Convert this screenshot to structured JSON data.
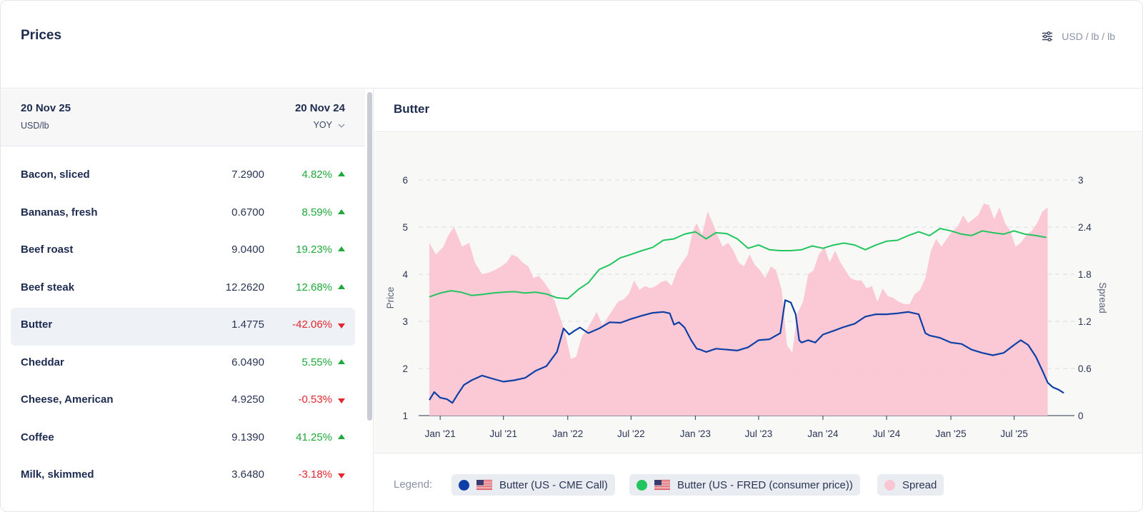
{
  "header": {
    "title": "Prices",
    "units": "USD / lb / lb",
    "units_icon": "sliders-icon"
  },
  "left_panel": {
    "date_current": "20 Nov 25",
    "unit": "USD/lb",
    "date_compare": "20 Nov 24",
    "compare_mode": "YOY",
    "rows": [
      {
        "name": "Bacon, sliced",
        "value": "7.2900",
        "change": "4.82%",
        "dir": "up"
      },
      {
        "name": "Bananas, fresh",
        "value": "0.6700",
        "change": "8.59%",
        "dir": "up"
      },
      {
        "name": "Beef roast",
        "value": "9.0400",
        "change": "19.23%",
        "dir": "up"
      },
      {
        "name": "Beef steak",
        "value": "12.2620",
        "change": "12.68%",
        "dir": "up"
      },
      {
        "name": "Butter",
        "value": "1.4775",
        "change": "-42.06%",
        "dir": "down",
        "selected": true
      },
      {
        "name": "Cheddar",
        "value": "6.0490",
        "change": "5.55%",
        "dir": "up"
      },
      {
        "name": "Cheese, American",
        "value": "4.9250",
        "change": "-0.53%",
        "dir": "down"
      },
      {
        "name": "Coffee",
        "value": "9.1390",
        "change": "41.25%",
        "dir": "up"
      },
      {
        "name": "Milk, skimmed",
        "value": "3.6480",
        "change": "-3.18%",
        "dir": "down"
      }
    ]
  },
  "chart_panel": {
    "title": "Butter"
  },
  "legend": {
    "label": "Legend:",
    "items": [
      {
        "name": "Butter (US - CME Call)",
        "color": "#0d3fa6",
        "flag": "us-flag-icon"
      },
      {
        "name": "Butter (US - FRED (consumer price))",
        "color": "#22c55e",
        "flag": "us-flag-icon"
      },
      {
        "name": "Spread",
        "color": "#fbc6d3"
      }
    ]
  },
  "chart_data": {
    "type": "line",
    "ylabel": "Price",
    "y2label": "Spread",
    "ylim": [
      1,
      6
    ],
    "y2lim": [
      0,
      3
    ],
    "yticks": [
      "1",
      "2",
      "3",
      "4",
      "5",
      "6"
    ],
    "y2ticks": [
      "0",
      "0.6",
      "1.2",
      "1.8",
      "2.4",
      "3"
    ],
    "xticks": [
      "Jan '21",
      "Jul '21",
      "Jan '22",
      "Jul '22",
      "Jan '23",
      "Jul '23",
      "Jan '24",
      "Jul '24",
      "Jan '25",
      "Jul '25"
    ],
    "xlim": [
      "2020-12-01",
      "2025-11-30"
    ],
    "grid": "horizontal dashed",
    "series": [
      {
        "name": "Butter (US - CME Call)",
        "axis": "left",
        "color": "#0d3fa6",
        "x": [
          "2020-12-01",
          "2020-12-15",
          "2021-01-01",
          "2021-01-20",
          "2021-02-05",
          "2021-02-20",
          "2021-03-10",
          "2021-04-01",
          "2021-05-01",
          "2021-06-01",
          "2021-07-01",
          "2021-08-01",
          "2021-09-01",
          "2021-10-01",
          "2021-11-01",
          "2021-12-01",
          "2021-12-20",
          "2022-01-05",
          "2022-01-20",
          "2022-02-05",
          "2022-03-01",
          "2022-04-01",
          "2022-05-01",
          "2022-06-01",
          "2022-07-01",
          "2022-08-01",
          "2022-09-01",
          "2022-10-01",
          "2022-10-20",
          "2022-11-01",
          "2022-11-15",
          "2022-12-01",
          "2022-12-20",
          "2023-01-05",
          "2023-01-15",
          "2023-02-01",
          "2023-03-01",
          "2023-04-01",
          "2023-05-01",
          "2023-06-01",
          "2023-07-01",
          "2023-08-01",
          "2023-09-01",
          "2023-09-15",
          "2023-10-01",
          "2023-10-15",
          "2023-10-25",
          "2023-11-01",
          "2023-11-20",
          "2023-12-10",
          "2024-01-01",
          "2024-02-01",
          "2024-03-01",
          "2024-04-01",
          "2024-05-01",
          "2024-06-01",
          "2024-07-01",
          "2024-08-01",
          "2024-09-01",
          "2024-10-01",
          "2024-10-20",
          "2024-11-01",
          "2024-12-01",
          "2025-01-01",
          "2025-02-01",
          "2025-03-01",
          "2025-04-01",
          "2025-05-01",
          "2025-06-01",
          "2025-07-01",
          "2025-07-20",
          "2025-08-10",
          "2025-09-01",
          "2025-09-20",
          "2025-10-05",
          "2025-10-20",
          "2025-11-05",
          "2025-11-20"
        ],
        "y": [
          1.33,
          1.5,
          1.38,
          1.35,
          1.27,
          1.45,
          1.65,
          1.75,
          1.85,
          1.78,
          1.72,
          1.75,
          1.8,
          1.95,
          2.05,
          2.35,
          2.85,
          2.72,
          2.8,
          2.87,
          2.75,
          2.85,
          2.98,
          2.97,
          3.05,
          3.12,
          3.18,
          3.2,
          3.17,
          2.93,
          2.98,
          2.87,
          2.6,
          2.42,
          2.4,
          2.35,
          2.42,
          2.4,
          2.38,
          2.45,
          2.6,
          2.62,
          2.75,
          3.45,
          3.4,
          3.15,
          2.6,
          2.55,
          2.6,
          2.55,
          2.72,
          2.8,
          2.88,
          2.95,
          3.1,
          3.15,
          3.15,
          3.17,
          3.2,
          3.15,
          2.75,
          2.7,
          2.65,
          2.55,
          2.52,
          2.4,
          2.33,
          2.28,
          2.33,
          2.5,
          2.6,
          2.5,
          2.25,
          1.95,
          1.7,
          1.6,
          1.55,
          1.48
        ]
      },
      {
        "name": "Butter (US - FRED (consumer price))",
        "axis": "left",
        "color": "#22c55e",
        "x": [
          "2020-12-01",
          "2021-01-01",
          "2021-02-01",
          "2021-03-01",
          "2021-04-01",
          "2021-05-01",
          "2021-06-01",
          "2021-07-01",
          "2021-08-01",
          "2021-09-01",
          "2021-10-01",
          "2021-11-01",
          "2021-12-01",
          "2022-01-01",
          "2022-02-01",
          "2022-03-01",
          "2022-04-01",
          "2022-05-01",
          "2022-06-01",
          "2022-07-01",
          "2022-08-01",
          "2022-09-01",
          "2022-10-01",
          "2022-11-01",
          "2022-12-01",
          "2023-01-01",
          "2023-02-01",
          "2023-03-01",
          "2023-04-01",
          "2023-05-01",
          "2023-06-01",
          "2023-07-01",
          "2023-08-01",
          "2023-09-01",
          "2023-10-01",
          "2023-11-01",
          "2023-12-01",
          "2024-01-01",
          "2024-02-01",
          "2024-03-01",
          "2024-04-01",
          "2024-05-01",
          "2024-06-01",
          "2024-07-01",
          "2024-08-01",
          "2024-09-01",
          "2024-10-01",
          "2024-11-01",
          "2024-12-01",
          "2025-01-01",
          "2025-02-01",
          "2025-03-01",
          "2025-04-01",
          "2025-05-01",
          "2025-06-01",
          "2025-07-01",
          "2025-08-01",
          "2025-09-01",
          "2025-10-01"
        ],
        "y": [
          3.52,
          3.6,
          3.65,
          3.62,
          3.55,
          3.57,
          3.6,
          3.62,
          3.63,
          3.6,
          3.62,
          3.58,
          3.5,
          3.48,
          3.68,
          3.82,
          4.1,
          4.2,
          4.35,
          4.42,
          4.5,
          4.57,
          4.72,
          4.75,
          4.85,
          4.9,
          4.75,
          4.88,
          4.86,
          4.75,
          4.55,
          4.62,
          4.52,
          4.5,
          4.5,
          4.52,
          4.6,
          4.55,
          4.62,
          4.66,
          4.62,
          4.52,
          4.62,
          4.7,
          4.72,
          4.82,
          4.9,
          4.82,
          4.97,
          4.92,
          4.85,
          4.82,
          4.92,
          4.88,
          4.85,
          4.92,
          4.85,
          4.82,
          4.78
        ]
      },
      {
        "name": "Spread",
        "axis": "right",
        "type": "area",
        "color": "#fbc6d3",
        "x": [
          "2020-12-01",
          "2020-12-20",
          "2021-01-10",
          "2021-01-25",
          "2021-02-10",
          "2021-03-05",
          "2021-03-25",
          "2021-04-10",
          "2021-05-01",
          "2021-05-20",
          "2021-06-05",
          "2021-06-25",
          "2021-07-10",
          "2021-07-25",
          "2021-08-10",
          "2021-08-25",
          "2021-09-10",
          "2021-09-25",
          "2021-10-10",
          "2021-10-25",
          "2021-11-10",
          "2021-11-25",
          "2021-12-10",
          "2021-12-25",
          "2022-01-10",
          "2022-01-25",
          "2022-02-10",
          "2022-02-25",
          "2022-03-10",
          "2022-03-25",
          "2022-04-10",
          "2022-04-25",
          "2022-05-10",
          "2022-05-25",
          "2022-06-10",
          "2022-06-25",
          "2022-07-10",
          "2022-07-25",
          "2022-08-10",
          "2022-08-25",
          "2022-09-10",
          "2022-09-25",
          "2022-10-10",
          "2022-10-25",
          "2022-11-10",
          "2022-11-25",
          "2022-12-10",
          "2022-12-25",
          "2023-01-05",
          "2023-01-20",
          "2023-02-05",
          "2023-02-20",
          "2023-03-05",
          "2023-03-20",
          "2023-04-05",
          "2023-04-20",
          "2023-05-05",
          "2023-05-20",
          "2023-06-05",
          "2023-06-20",
          "2023-07-05",
          "2023-07-20",
          "2023-08-05",
          "2023-08-20",
          "2023-09-05",
          "2023-09-20",
          "2023-10-05",
          "2023-10-20",
          "2023-11-05",
          "2023-11-20",
          "2023-12-05",
          "2023-12-20",
          "2024-01-05",
          "2024-01-20",
          "2024-02-05",
          "2024-02-20",
          "2024-03-05",
          "2024-03-20",
          "2024-04-05",
          "2024-04-20",
          "2024-05-05",
          "2024-05-20",
          "2024-06-05",
          "2024-06-20",
          "2024-07-05",
          "2024-07-20",
          "2024-08-05",
          "2024-08-20",
          "2024-09-05",
          "2024-09-20",
          "2024-10-05",
          "2024-10-20",
          "2024-11-05",
          "2024-11-20",
          "2024-12-05",
          "2024-12-20",
          "2025-01-05",
          "2025-01-20",
          "2025-02-05",
          "2025-02-20",
          "2025-03-05",
          "2025-03-20",
          "2025-04-05",
          "2025-04-20",
          "2025-05-05",
          "2025-05-20",
          "2025-06-05",
          "2025-06-20",
          "2025-07-05",
          "2025-07-20",
          "2025-08-05",
          "2025-08-20",
          "2025-09-05",
          "2025-09-20",
          "2025-10-05"
        ],
        "y": [
          2.2,
          2.05,
          2.15,
          2.3,
          2.4,
          2.15,
          2.2,
          1.95,
          1.8,
          1.82,
          1.85,
          1.9,
          1.95,
          2.05,
          2.02,
          1.95,
          1.9,
          1.75,
          1.78,
          1.7,
          1.6,
          1.45,
          1.25,
          1.05,
          0.72,
          0.75,
          1.0,
          1.1,
          1.2,
          1.32,
          1.15,
          1.25,
          1.35,
          1.45,
          1.48,
          1.55,
          1.72,
          1.6,
          1.65,
          1.62,
          1.65,
          1.7,
          1.72,
          1.65,
          1.85,
          1.95,
          2.05,
          2.35,
          2.45,
          2.3,
          2.6,
          2.45,
          2.3,
          2.15,
          2.2,
          2.1,
          1.95,
          1.9,
          2.05,
          1.92,
          1.85,
          1.75,
          1.9,
          1.85,
          1.6,
          0.9,
          0.8,
          1.3,
          1.45,
          1.8,
          1.85,
          2.05,
          2.15,
          1.95,
          2.1,
          1.95,
          1.85,
          1.75,
          1.72,
          1.72,
          1.62,
          1.65,
          1.45,
          1.62,
          1.52,
          1.5,
          1.45,
          1.42,
          1.42,
          1.55,
          1.6,
          1.75,
          2.1,
          2.25,
          2.15,
          2.25,
          2.35,
          2.4,
          2.55,
          2.45,
          2.5,
          2.55,
          2.7,
          2.68,
          2.5,
          2.65,
          2.45,
          2.35,
          2.15,
          2.2,
          2.3,
          2.35,
          2.45,
          2.6,
          2.65
        ]
      }
    ]
  }
}
